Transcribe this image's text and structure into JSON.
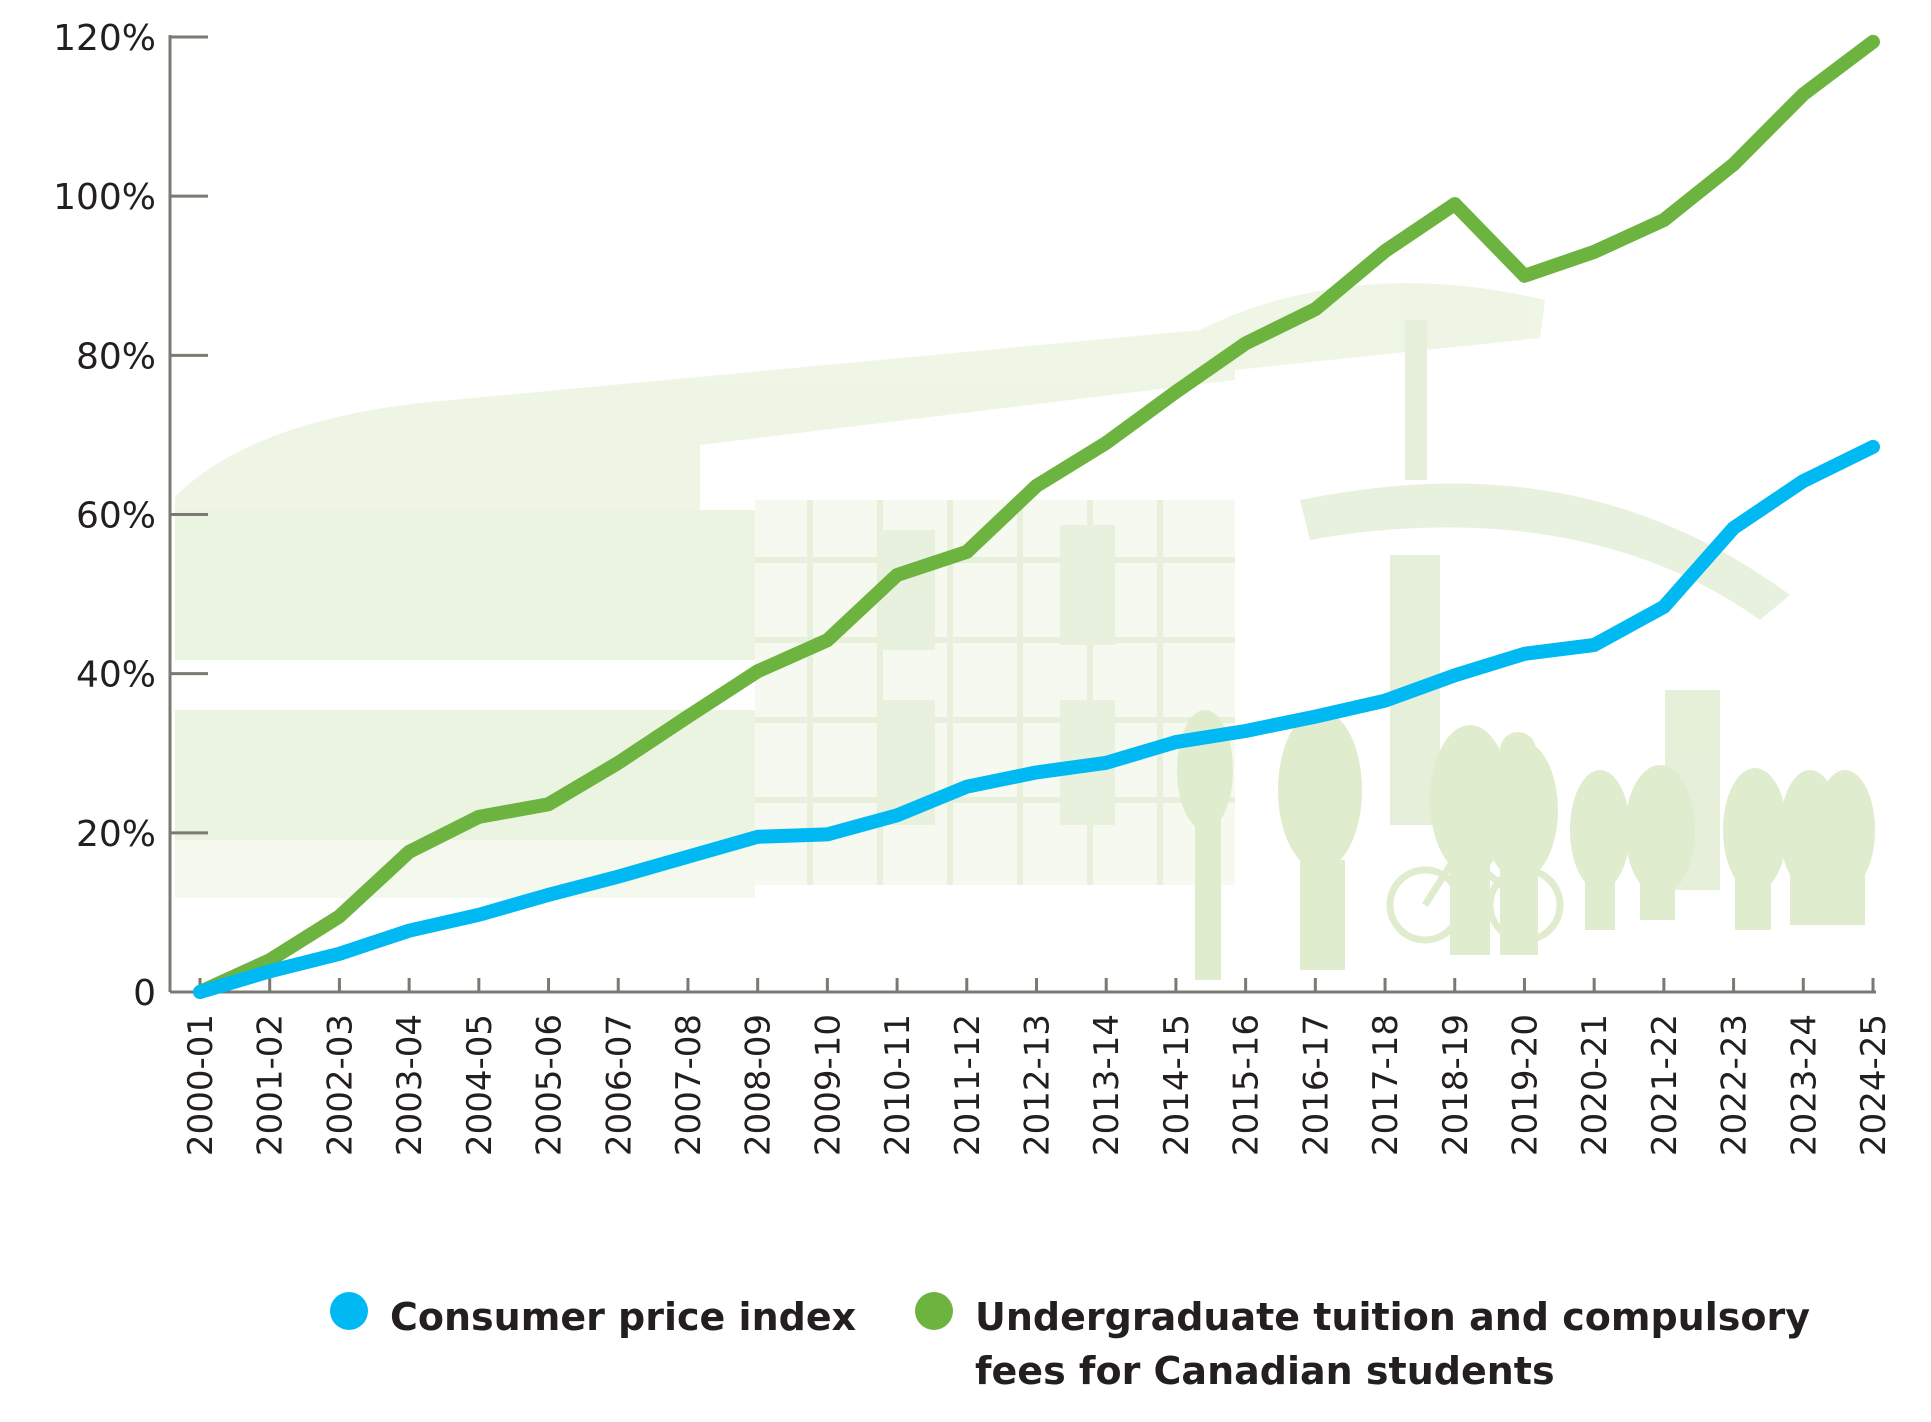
{
  "chart_data": {
    "type": "line",
    "title": "",
    "xlabel": "",
    "ylabel": "",
    "categories": [
      "2000-01",
      "2001-02",
      "2002-03",
      "2003-04",
      "2004-05",
      "2005-06",
      "2006-07",
      "2007-08",
      "2008-09",
      "2009-10",
      "2010-11",
      "2011-12",
      "2012-13",
      "2013-14",
      "2014-15",
      "2015-16",
      "2016-17",
      "2017-18",
      "2018-19",
      "2019-20",
      "2020-21",
      "2021-22",
      "2022-23",
      "2023-24",
      "2024-25"
    ],
    "y_ticks": [
      {
        "value": 0,
        "label": "0"
      },
      {
        "value": 20,
        "label": "20%"
      },
      {
        "value": 40,
        "label": "40%"
      },
      {
        "value": 60,
        "label": "60%"
      },
      {
        "value": 80,
        "label": "80%"
      },
      {
        "value": 100,
        "label": "100%"
      },
      {
        "value": 120,
        "label": "120%"
      }
    ],
    "ylim": [
      0,
      120
    ],
    "grid": false,
    "legend_position": "bottom",
    "series": [
      {
        "name": "Consumer price index",
        "color": "#00b9f2",
        "values": [
          0,
          2.6,
          4.8,
          7.7,
          9.7,
          12.2,
          14.5,
          17.0,
          19.5,
          19.8,
          22.2,
          25.8,
          27.6,
          28.8,
          31.4,
          32.8,
          34.6,
          36.6,
          39.8,
          42.5,
          43.6,
          48.4,
          58.3,
          64.2,
          68.5
        ]
      },
      {
        "name": "Undergraduate tuition and compulsory fees for Canadian students",
        "legend_lines": [
          "Undergraduate tuition and compulsory",
          "fees for Canadian students"
        ],
        "color": "#6cb33f",
        "values": [
          0,
          4.0,
          9.5,
          17.6,
          22.0,
          23.6,
          28.8,
          34.6,
          40.3,
          44.2,
          52.4,
          55.3,
          63.6,
          69.0,
          75.4,
          81.5,
          85.8,
          93.1,
          99.0,
          90.0,
          93.0,
          97.0,
          104.0,
          112.8,
          119.4
        ]
      }
    ],
    "background_image": "campus-building-and-students-silhouette"
  }
}
